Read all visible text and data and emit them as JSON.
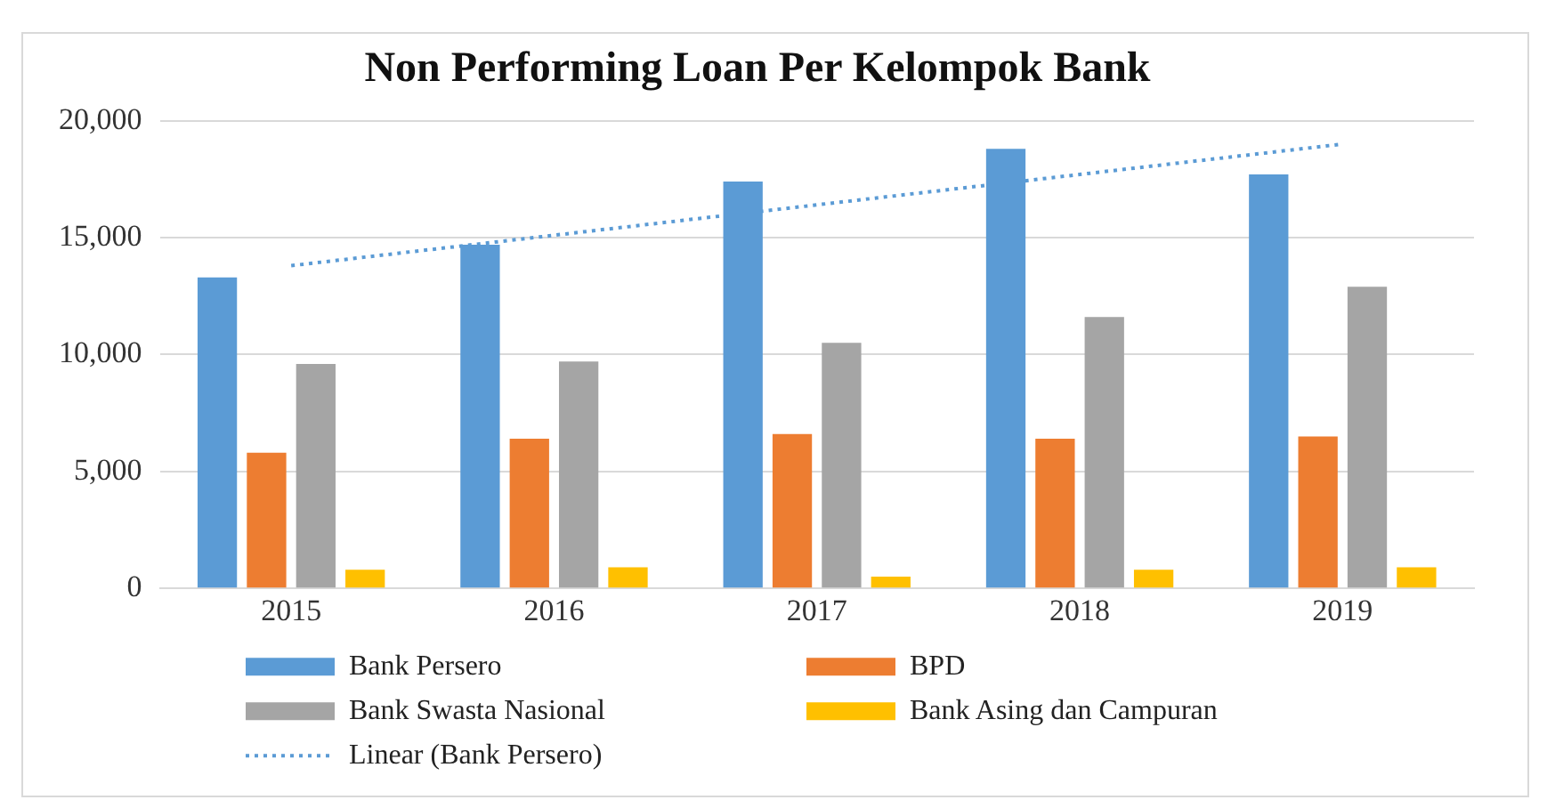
{
  "chart_data": {
    "type": "bar",
    "title": "Non Performing Loan Per Kelompok Bank",
    "categories": [
      "2015",
      "2016",
      "2017",
      "2018",
      "2019"
    ],
    "series": [
      {
        "name": "Bank Persero",
        "color": "#5b9bd5",
        "values": [
          13300,
          14700,
          17400,
          18800,
          17700
        ]
      },
      {
        "name": "BPD",
        "color": "#ed7d31",
        "values": [
          5800,
          6400,
          6600,
          6400,
          6500
        ]
      },
      {
        "name": "Bank Swasta Nasional",
        "color": "#a5a5a5",
        "values": [
          9600,
          9700,
          10500,
          11600,
          12900
        ]
      },
      {
        "name": "Bank Asing dan Campuran",
        "color": "#ffc000",
        "values": [
          800,
          900,
          500,
          800,
          900
        ]
      },
      {
        "name": "Linear (Bank Persero)",
        "type": "line",
        "line_style": "dotted",
        "color": "#5b9bd5",
        "values": [
          13800,
          15100,
          16400,
          17700,
          19000
        ]
      }
    ],
    "ylim": [
      0,
      20000
    ],
    "yticks": [
      {
        "value": 0,
        "label": "0"
      },
      {
        "value": 5000,
        "label": "5,000"
      },
      {
        "value": 10000,
        "label": "10,000"
      },
      {
        "value": 15000,
        "label": "15,000"
      },
      {
        "value": 20000,
        "label": "20,000"
      }
    ],
    "grid": "y",
    "legend": "bottom",
    "marker": "none"
  }
}
